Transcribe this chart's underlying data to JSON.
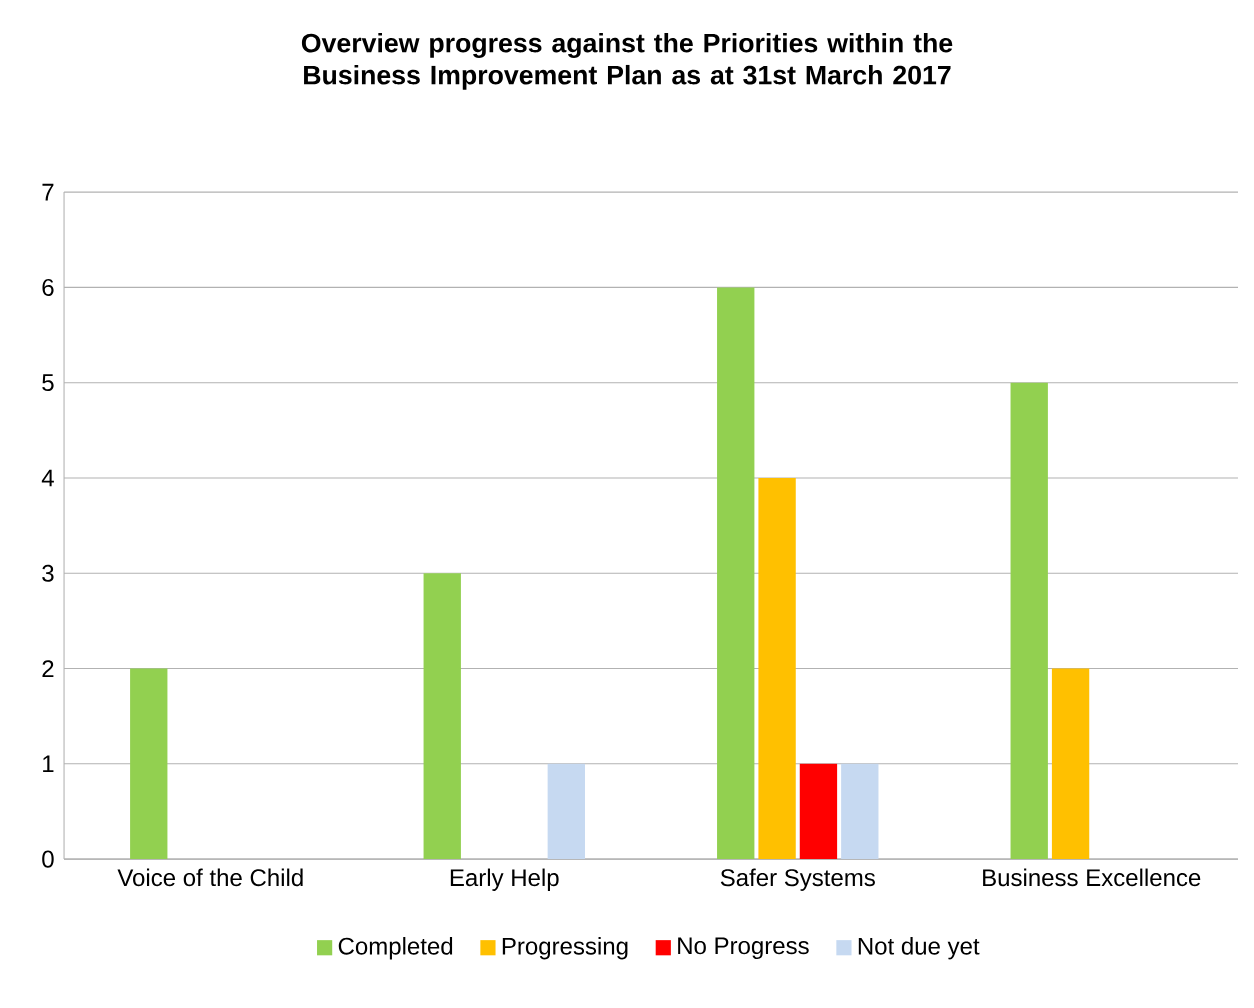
{
  "chart_data": {
    "type": "bar",
    "title": "Overview progress against the Priorities within the Business Improvement Plan as at 31st March 2017",
    "categories": [
      "Voice of the Child",
      "Early Help",
      "Safer Systems",
      "Business Excellence"
    ],
    "series": [
      {
        "name": "Completed",
        "color": "#92d050",
        "values": [
          2,
          3,
          6,
          5
        ]
      },
      {
        "name": "Progressing",
        "color": "#ffc000",
        "values": [
          0,
          0,
          4,
          2
        ]
      },
      {
        "name": "No Progress",
        "color": "#ff0000",
        "values": [
          0,
          0,
          1,
          0
        ]
      },
      {
        "name": "Not due yet",
        "color": "#c6d9f1",
        "values": [
          0,
          1,
          1,
          0
        ]
      }
    ],
    "ylim": [
      0,
      7
    ],
    "yticks": [
      0,
      1,
      2,
      3,
      4,
      5,
      6,
      7
    ],
    "grid": "y",
    "legend": "bottom"
  }
}
